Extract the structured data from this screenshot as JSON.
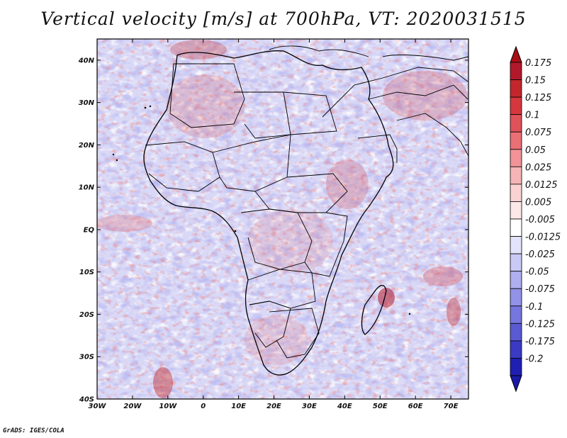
{
  "title": "Vertical velocity [m/s] at 700hPa, VT: 2020031515",
  "footer": "GrADS: IGES/COLA",
  "map": {
    "lon_range": [
      -30,
      75
    ],
    "lat_range": [
      -40,
      45
    ],
    "x_ticks": [
      {
        "value": -30,
        "label": "30W"
      },
      {
        "value": -20,
        "label": "20W"
      },
      {
        "value": -10,
        "label": "10W"
      },
      {
        "value": 0,
        "label": "0"
      },
      {
        "value": 10,
        "label": "10E"
      },
      {
        "value": 20,
        "label": "20E"
      },
      {
        "value": 30,
        "label": "30E"
      },
      {
        "value": 40,
        "label": "40E"
      },
      {
        "value": 50,
        "label": "50E"
      },
      {
        "value": 60,
        "label": "60E"
      },
      {
        "value": 70,
        "label": "70E"
      }
    ],
    "y_ticks": [
      {
        "value": 40,
        "label": "40N"
      },
      {
        "value": 30,
        "label": "30N"
      },
      {
        "value": 20,
        "label": "20N"
      },
      {
        "value": 10,
        "label": "10N"
      },
      {
        "value": 0,
        "label": "EQ"
      },
      {
        "value": -10,
        "label": "10S"
      },
      {
        "value": -20,
        "label": "20S"
      },
      {
        "value": -30,
        "label": "30S"
      },
      {
        "value": -40,
        "label": "40S"
      }
    ]
  },
  "colorbar": {
    "levels": [
      {
        "label": "0.175",
        "color": "#b2182b"
      },
      {
        "label": "0.15",
        "color": "#c1272d"
      },
      {
        "label": "0.125",
        "color": "#d6373e"
      },
      {
        "label": "0.1",
        "color": "#e0525a"
      },
      {
        "label": "0.075",
        "color": "#ea7076"
      },
      {
        "label": "0.05",
        "color": "#f19398"
      },
      {
        "label": "0.025",
        "color": "#f6b4b6"
      },
      {
        "label": "0.0125",
        "color": "#fad2d2"
      },
      {
        "label": "0.005",
        "color": "#fde8e8"
      },
      {
        "label": "-0.005",
        "color": "#ffffff"
      },
      {
        "label": "-0.0125",
        "color": "#e3e3fb"
      },
      {
        "label": "-0.025",
        "color": "#c9c9f6"
      },
      {
        "label": "-0.05",
        "color": "#aeaef0"
      },
      {
        "label": "-0.075",
        "color": "#9292e8"
      },
      {
        "label": "-0.1",
        "color": "#7676de"
      },
      {
        "label": "-0.125",
        "color": "#5a5ad2"
      },
      {
        "label": "-0.175",
        "color": "#3a3ac4"
      },
      {
        "label": "-0.2",
        "color": "#1f1fb2"
      }
    ],
    "top_arrow_color": "#a50f15",
    "bottom_arrow_color": "#1a1aa8"
  }
}
